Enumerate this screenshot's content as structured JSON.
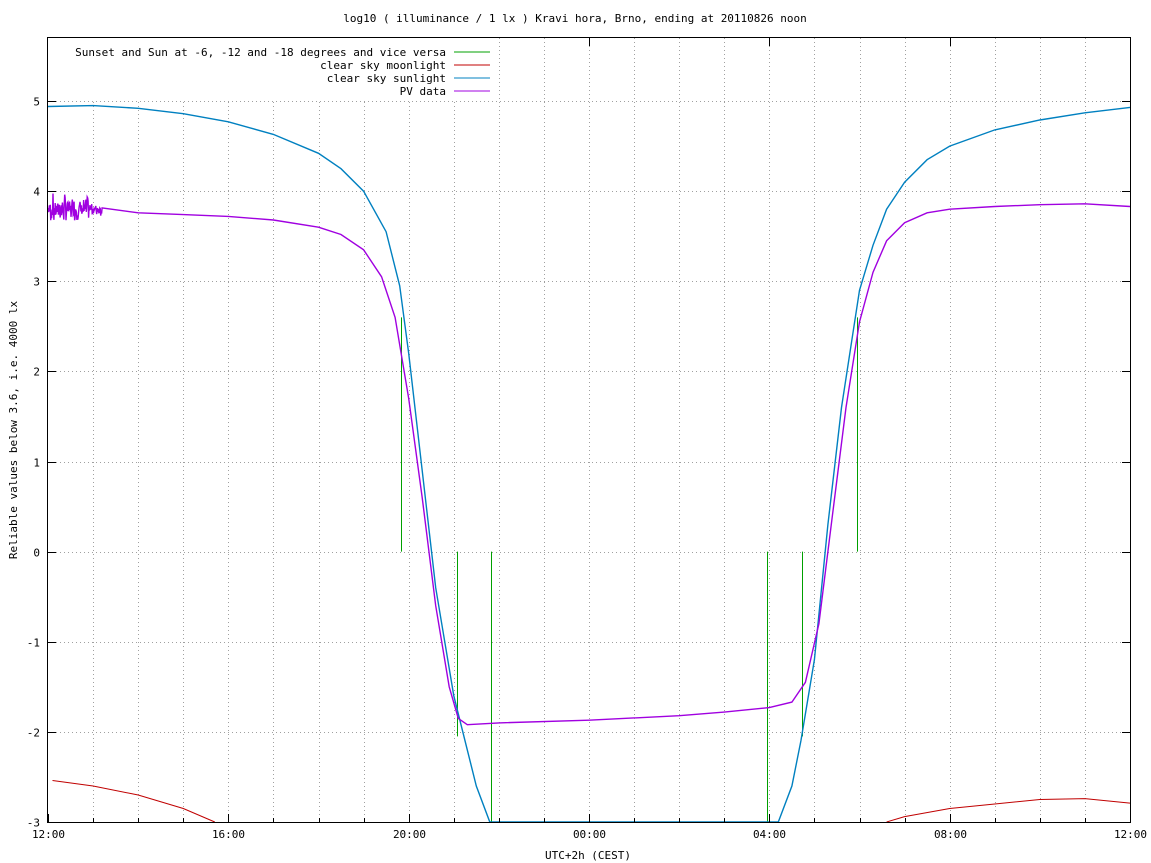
{
  "chart_data": {
    "type": "line",
    "title": "log10 ( illuminance / 1 lx ) Kravi hora, Brno, ending at 20110826 noon",
    "xlabel": "UTC+2h (CEST)",
    "ylabel": "Reliable values below 3.6, i.e. 4000 lx",
    "x_unit": "hours",
    "xlim": [
      12,
      36
    ],
    "ylim": [
      -3,
      5.7
    ],
    "x_ticks": [
      {
        "value": 12,
        "label": "12:00"
      },
      {
        "value": 16,
        "label": "16:00"
      },
      {
        "value": 20,
        "label": "20:00"
      },
      {
        "value": 24,
        "label": "00:00"
      },
      {
        "value": 28,
        "label": "04:00"
      },
      {
        "value": 32,
        "label": "08:00"
      },
      {
        "value": 36,
        "label": "12:00"
      }
    ],
    "y_ticks": [
      {
        "value": -3,
        "label": "-3"
      },
      {
        "value": -2,
        "label": "-2"
      },
      {
        "value": -1,
        "label": "-1"
      },
      {
        "value": 0,
        "label": "0"
      },
      {
        "value": 1,
        "label": "1"
      },
      {
        "value": 2,
        "label": "2"
      },
      {
        "value": 3,
        "label": "3"
      },
      {
        "value": 4,
        "label": "4"
      },
      {
        "value": 5,
        "label": "5"
      }
    ],
    "grid": true,
    "legend_position": "top-left",
    "series": [
      {
        "name": "Sunset and Sun at -6, -12 and -18 degrees and vice versa",
        "color": "#00a000",
        "style": "impulses",
        "impulses": [
          {
            "x": 19.83,
            "y": 2.6
          },
          {
            "x": 21.08,
            "y": -2.05
          },
          {
            "x": 21.83,
            "y": -3.0
          },
          {
            "x": 27.95,
            "y": -3.0
          },
          {
            "x": 28.72,
            "y": -2.05
          },
          {
            "x": 29.95,
            "y": 2.6
          }
        ]
      },
      {
        "name": "clear sky moonlight",
        "color": "#c00000",
        "style": "line",
        "segments": [
          [
            [
              12.1,
              -2.54
            ],
            [
              13.0,
              -2.6
            ],
            [
              14.0,
              -2.7
            ],
            [
              15.0,
              -2.85
            ],
            [
              15.7,
              -3.0
            ]
          ],
          [
            [
              30.6,
              -3.0
            ],
            [
              31.0,
              -2.94
            ],
            [
              32.0,
              -2.85
            ],
            [
              33.0,
              -2.8
            ],
            [
              34.0,
              -2.75
            ],
            [
              35.0,
              -2.74
            ],
            [
              36.0,
              -2.79
            ]
          ]
        ]
      },
      {
        "name": "clear sky sunlight",
        "color": "#0080c0",
        "style": "line",
        "points": [
          [
            12.0,
            4.94
          ],
          [
            13.0,
            4.95
          ],
          [
            14.0,
            4.92
          ],
          [
            15.0,
            4.86
          ],
          [
            16.0,
            4.77
          ],
          [
            17.0,
            4.63
          ],
          [
            18.0,
            4.42
          ],
          [
            18.5,
            4.25
          ],
          [
            19.0,
            4.0
          ],
          [
            19.5,
            3.55
          ],
          [
            19.8,
            2.95
          ],
          [
            20.0,
            2.2
          ],
          [
            20.3,
            0.9
          ],
          [
            20.6,
            -0.4
          ],
          [
            21.0,
            -1.6
          ],
          [
            21.3,
            -2.2
          ],
          [
            21.5,
            -2.6
          ],
          [
            21.8,
            -3.0
          ],
          [
            28.2,
            -3.0
          ],
          [
            28.5,
            -2.6
          ],
          [
            28.7,
            -2.1
          ],
          [
            29.0,
            -1.2
          ],
          [
            29.3,
            0.3
          ],
          [
            29.6,
            1.6
          ],
          [
            30.0,
            2.9
          ],
          [
            30.3,
            3.4
          ],
          [
            30.6,
            3.8
          ],
          [
            31.0,
            4.1
          ],
          [
            31.5,
            4.35
          ],
          [
            32.0,
            4.5
          ],
          [
            33.0,
            4.68
          ],
          [
            34.0,
            4.79
          ],
          [
            35.0,
            4.87
          ],
          [
            36.0,
            4.93
          ]
        ]
      },
      {
        "name": "PV data",
        "color": "#a000e0",
        "style": "line",
        "points": [
          [
            12.0,
            3.85
          ],
          [
            12.5,
            3.78
          ],
          [
            13.0,
            3.78
          ],
          [
            14.0,
            3.76
          ],
          [
            15.0,
            3.74
          ],
          [
            16.0,
            3.72
          ],
          [
            17.0,
            3.68
          ],
          [
            18.0,
            3.6
          ],
          [
            18.5,
            3.52
          ],
          [
            19.0,
            3.35
          ],
          [
            19.4,
            3.05
          ],
          [
            19.7,
            2.6
          ],
          [
            20.0,
            1.7
          ],
          [
            20.3,
            0.6
          ],
          [
            20.6,
            -0.6
          ],
          [
            20.9,
            -1.5
          ],
          [
            21.1,
            -1.85
          ],
          [
            21.3,
            -1.92
          ],
          [
            22.0,
            -1.9
          ],
          [
            24.0,
            -1.87
          ],
          [
            26.0,
            -1.82
          ],
          [
            27.0,
            -1.78
          ],
          [
            28.0,
            -1.73
          ],
          [
            28.5,
            -1.67
          ],
          [
            28.8,
            -1.45
          ],
          [
            29.1,
            -0.8
          ],
          [
            29.4,
            0.4
          ],
          [
            29.7,
            1.6
          ],
          [
            30.0,
            2.55
          ],
          [
            30.3,
            3.1
          ],
          [
            30.6,
            3.45
          ],
          [
            31.0,
            3.65
          ],
          [
            31.5,
            3.76
          ],
          [
            32.0,
            3.8
          ],
          [
            33.0,
            3.83
          ],
          [
            34.0,
            3.85
          ],
          [
            35.0,
            3.86
          ],
          [
            36.0,
            3.83
          ]
        ],
        "noisy_start": {
          "from": 12.0,
          "to": 13.2,
          "amplitude": 0.15
        }
      }
    ]
  }
}
